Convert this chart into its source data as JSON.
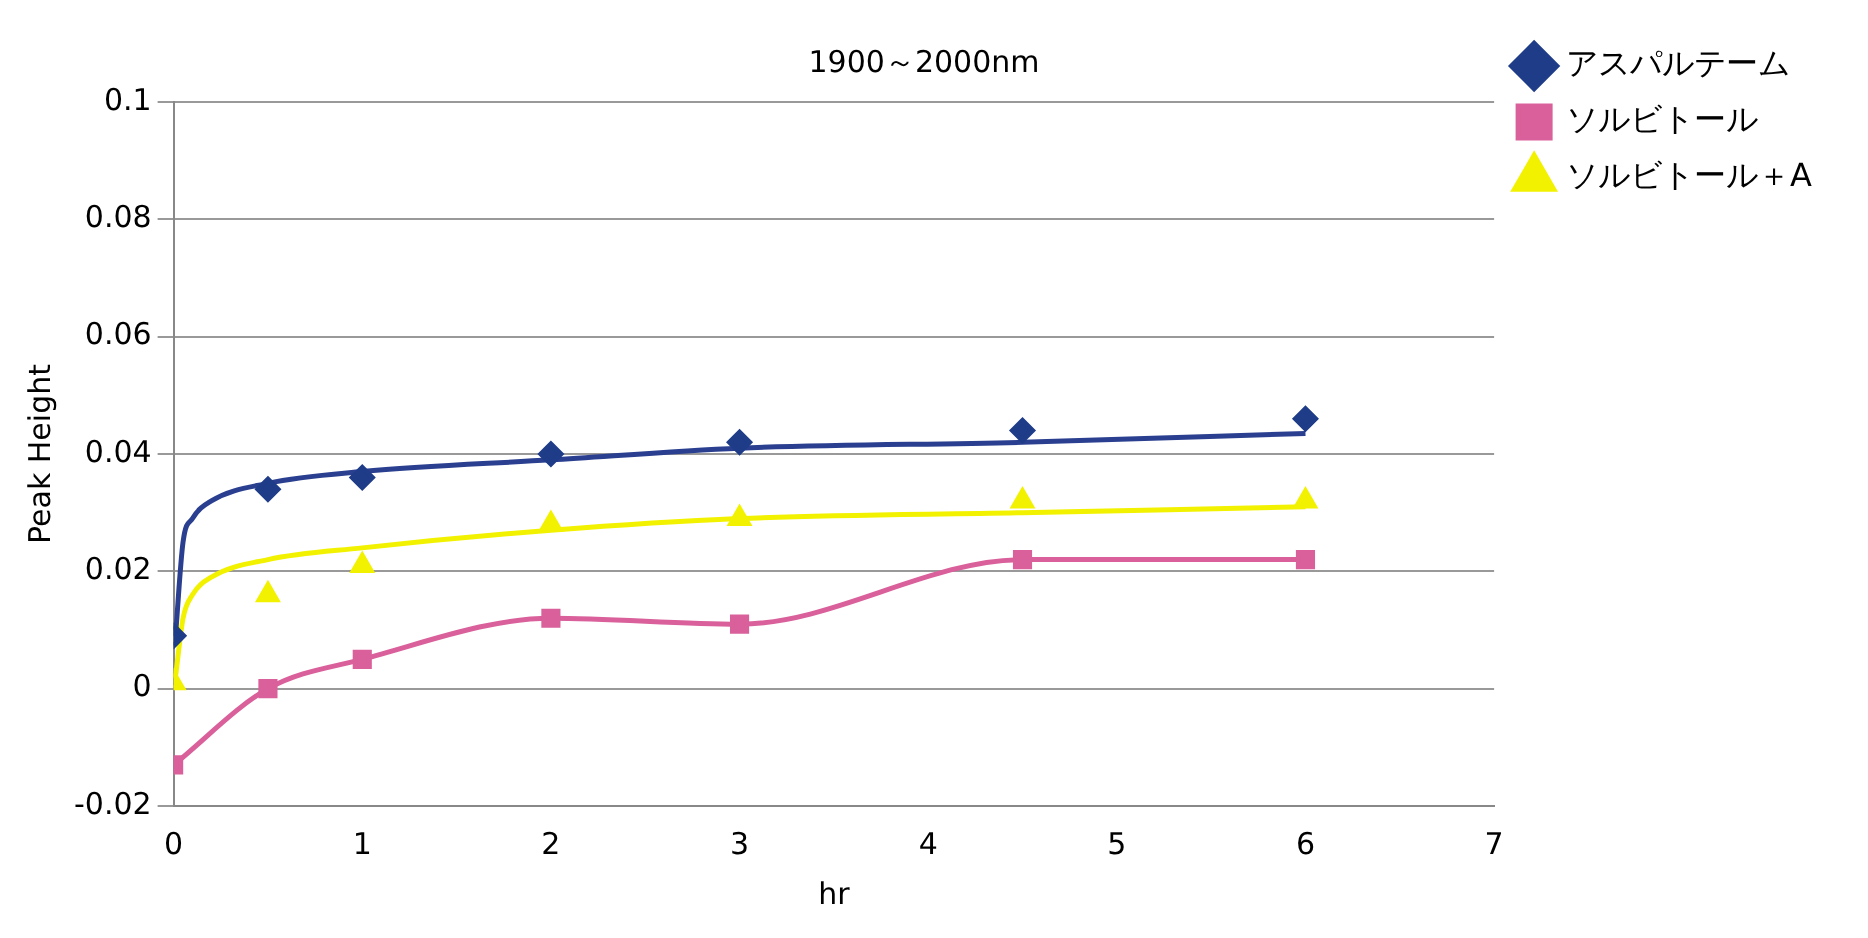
{
  "chart_data": {
    "type": "scatter",
    "title": "1900～2000nm",
    "xlabel": "hr",
    "ylabel": "Peak Height",
    "x": [
      0,
      0.5,
      1,
      2,
      3,
      4.5,
      6
    ],
    "series": [
      {
        "name": "アスパルテーム",
        "type": "scatter",
        "marker": "diamond",
        "color": "#1f3c88",
        "values": [
          0.009,
          0.034,
          0.036,
          0.04,
          0.042,
          0.044,
          0.046
        ]
      },
      {
        "name": "ソルビトール",
        "type": "line",
        "marker": "square",
        "color": "#d9609a",
        "values": [
          -0.013,
          0,
          0.005,
          0.012,
          0.011,
          0.022,
          0.022
        ]
      },
      {
        "name": "ソルビトール＋A",
        "type": "scatter",
        "marker": "triangle",
        "color": "#f2f200",
        "values": [
          0.001,
          0.016,
          0.021,
          0.028,
          0.029,
          0.032,
          0.032
        ]
      },
      {
        "type": "line",
        "marker": "none",
        "color": "#2a3f8f",
        "x": [
          0.01,
          0.05,
          0.1,
          0.2,
          0.5,
          1,
          2,
          3,
          4.5,
          6
        ],
        "values": [
          0.009,
          0.025,
          0.029,
          0.032,
          0.035,
          0.037,
          0.039,
          0.041,
          0.042,
          0.0435
        ]
      },
      {
        "type": "line",
        "marker": "none",
        "color": "#f2f200",
        "x": [
          0.01,
          0.05,
          0.1,
          0.2,
          0.5,
          1,
          2,
          3,
          4.5,
          6
        ],
        "values": [
          0.002,
          0.012,
          0.016,
          0.019,
          0.022,
          0.024,
          0.027,
          0.029,
          0.03,
          0.031
        ]
      }
    ],
    "xlim": [
      0,
      7
    ],
    "xticks": [
      0,
      1,
      2,
      3,
      4,
      5,
      6,
      7
    ],
    "ylim": [
      -0.02,
      0.1
    ],
    "yticks": [
      -0.02,
      0,
      0.02,
      0.04,
      0.06,
      0.08,
      0.1
    ],
    "grid": "y",
    "legend": "top right"
  }
}
